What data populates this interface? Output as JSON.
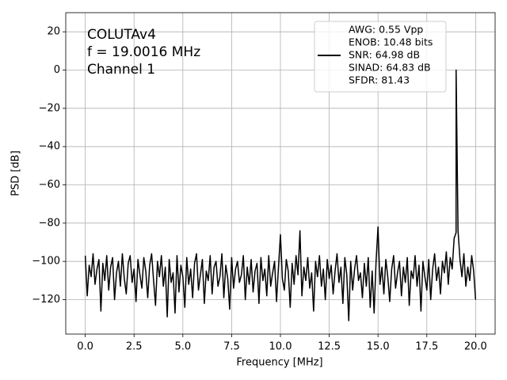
{
  "chart_data": {
    "type": "line",
    "annotations": [
      "COLUTAv4",
      "f = 19.0016 MHz",
      "Channel 1"
    ],
    "xlabel": "Frequency [MHz]",
    "ylabel": "PSD [dB]",
    "xlim": [
      -1,
      21
    ],
    "ylim": [
      -138,
      30
    ],
    "xticks": [
      {
        "value": 0,
        "label": "0.0"
      },
      2.5,
      {
        "value": 5,
        "label": "5.0"
      },
      7.5,
      {
        "value": 10,
        "label": "10.0"
      },
      12.5,
      {
        "value": 15,
        "label": "15.0"
      },
      17.5,
      {
        "value": 20,
        "label": "20.0"
      }
    ],
    "yticks": [
      20,
      0,
      {
        "value": -20,
        "label": "−20"
      },
      {
        "value": -40,
        "label": "−40"
      },
      {
        "value": -60,
        "label": "−60"
      },
      {
        "value": -80,
        "label": "−80"
      },
      {
        "value": -100,
        "label": "−100"
      },
      {
        "value": -120,
        "label": "−120"
      }
    ],
    "grid": true,
    "legend": "upper right",
    "x": [
      0,
      0.1,
      0.2,
      0.3,
      0.4,
      0.5,
      0.6,
      0.7,
      0.8,
      0.9,
      1,
      1.1,
      1.2,
      1.3,
      1.4,
      1.5,
      1.6,
      1.7,
      1.8,
      1.9,
      2,
      2.1,
      2.2,
      2.3,
      2.4,
      2.5,
      2.6,
      2.7,
      2.8,
      2.9,
      3,
      3.1,
      3.2,
      3.3,
      3.4,
      3.5,
      3.6,
      3.7,
      3.8,
      3.9,
      4,
      4.1,
      4.2,
      4.3,
      4.4,
      4.5,
      4.6,
      4.7,
      4.8,
      4.9,
      5,
      5.1,
      5.2,
      5.3,
      5.4,
      5.5,
      5.6,
      5.7,
      5.8,
      5.9,
      6,
      6.1,
      6.2,
      6.3,
      6.4,
      6.5,
      6.6,
      6.7,
      6.8,
      6.9,
      7,
      7.1,
      7.2,
      7.3,
      7.4,
      7.5,
      7.6,
      7.7,
      7.8,
      7.9,
      8,
      8.1,
      8.2,
      8.3,
      8.4,
      8.5,
      8.6,
      8.7,
      8.8,
      8.9,
      9,
      9.1,
      9.2,
      9.3,
      9.4,
      9.5,
      9.6,
      9.7,
      9.8,
      9.9,
      10,
      10.1,
      10.2,
      10.3,
      10.4,
      10.5,
      10.6,
      10.7,
      10.8,
      10.9,
      11,
      11.1,
      11.2,
      11.3,
      11.4,
      11.5,
      11.6,
      11.7,
      11.8,
      11.9,
      12,
      12.1,
      12.2,
      12.3,
      12.4,
      12.5,
      12.6,
      12.7,
      12.8,
      12.9,
      13,
      13.1,
      13.2,
      13.3,
      13.4,
      13.5,
      13.6,
      13.7,
      13.8,
      13.9,
      14,
      14.1,
      14.2,
      14.3,
      14.4,
      14.5,
      14.6,
      14.7,
      14.8,
      14.9,
      15,
      15.1,
      15.2,
      15.3,
      15.4,
      15.5,
      15.6,
      15.7,
      15.8,
      15.9,
      16,
      16.1,
      16.2,
      16.3,
      16.4,
      16.5,
      16.6,
      16.7,
      16.8,
      16.9,
      17,
      17.1,
      17.2,
      17.3,
      17.4,
      17.5,
      17.6,
      17.7,
      17.8,
      17.9,
      18,
      18.1,
      18.2,
      18.3,
      18.4,
      18.5,
      18.6,
      18.7,
      18.8,
      18.9,
      19,
      19.0016,
      19.1,
      19.2,
      19.3,
      19.4,
      19.5,
      19.6,
      19.7,
      19.8,
      19.9,
      20
    ],
    "series": [
      {
        "name": [
          "AWG: 0.55 Vpp",
          "ENOB: 10.48 bits",
          "SNR: 64.98 dB",
          "SINAD: 64.83 dB",
          "SFDR: 81.43"
        ],
        "color": "#000000",
        "values": [
          -97,
          -118,
          -102,
          -108,
          -96,
          -112,
          -104,
          -99,
          -126,
          -101,
          -110,
          -97,
          -115,
          -103,
          -98,
          -120,
          -106,
          -100,
          -113,
          -96,
          -109,
          -117,
          -101,
          -97,
          -111,
          -104,
          -121,
          -99,
          -107,
          -114,
          -98,
          -105,
          -119,
          -102,
          -96,
          -110,
          -123,
          -100,
          -108,
          -97,
          -113,
          -103,
          -129,
          -99,
          -111,
          -106,
          -127,
          -97,
          -116,
          -102,
          -108,
          -124,
          -98,
          -112,
          -104,
          -119,
          -101,
          -96,
          -115,
          -107,
          -99,
          -122,
          -105,
          -110,
          -97,
          -117,
          -103,
          -100,
          -113,
          -108,
          -96,
          -119,
          -102,
          -109,
          -125,
          -98,
          -114,
          -104,
          -100,
          -111,
          -107,
          -97,
          -120,
          -103,
          -112,
          -99,
          -116,
          -105,
          -101,
          -122,
          -98,
          -110,
          -104,
          -118,
          -97,
          -113,
          -106,
          -100,
          -121,
          -103,
          -86,
          -109,
          -115,
          -99,
          -105,
          -124,
          -101,
          -112,
          -97,
          -107,
          -84,
          -118,
          -103,
          -110,
          -98,
          -114,
          -106,
          -126,
          -100,
          -108,
          -97,
          -113,
          -104,
          -120,
          -99,
          -109,
          -102,
          -117,
          -105,
          -96,
          -111,
          -103,
          -122,
          -98,
          -107,
          -131,
          -100,
          -115,
          -104,
          -97,
          -110,
          -106,
          -119,
          -101,
          -113,
          -98,
          -124,
          -105,
          -127,
          -100,
          -82,
          -112,
          -103,
          -117,
          -99,
          -108,
          -121,
          -104,
          -97,
          -114,
          -106,
          -100,
          -118,
          -103,
          -111,
          -98,
          -123,
          -105,
          -109,
          -97,
          -113,
          -102,
          -126,
          -100,
          -108,
          -115,
          -99,
          -120,
          -104,
          -96,
          -110,
          -103,
          -117,
          -100,
          -106,
          -95,
          -112,
          -98,
          -104,
          -88,
          -85,
          0,
          -84,
          -99,
          -108,
          -96,
          -113,
          -103,
          -110,
          -97,
          -105,
          -120
        ]
      }
    ]
  }
}
